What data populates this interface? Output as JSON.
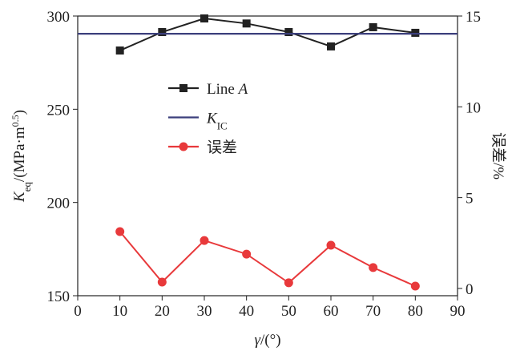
{
  "chart_data": {
    "type": "line",
    "xlabel": [
      {
        "text": "γ",
        "style": "italic"
      },
      {
        "text": "/(°)",
        "style": "normal"
      }
    ],
    "ylabel": [
      {
        "text": "K",
        "style": "italic"
      },
      {
        "text": "eq",
        "style": "sub"
      },
      {
        "text": "/(MPa·m",
        "style": "normal"
      },
      {
        "text": "0.5",
        "style": "sup"
      },
      {
        "text": ")",
        "style": "normal"
      }
    ],
    "y2label": [
      {
        "text": "误差/%",
        "style": "normal"
      }
    ],
    "x": [
      10,
      20,
      30,
      40,
      50,
      60,
      70,
      80
    ],
    "xlim": [
      0,
      90
    ],
    "xticks": [
      0,
      10,
      20,
      30,
      40,
      50,
      60,
      70,
      80,
      90
    ],
    "ylim": [
      150,
      300
    ],
    "yticks": [
      150,
      200,
      250,
      300
    ],
    "y2lim": [
      -0.4,
      15
    ],
    "y2ticks": [
      0,
      5,
      10,
      15
    ],
    "series": [
      {
        "name": [
          {
            "text": "Line ",
            "style": "normal"
          },
          {
            "text": "A",
            "style": "italic"
          }
        ],
        "color": "#222222",
        "marker": "square",
        "values": [
          281.5,
          291.4,
          298.7,
          296,
          291.4,
          283.7,
          294,
          291
        ]
      },
      {
        "name": [
          {
            "text": "K",
            "style": "italic"
          },
          {
            "text": "IC",
            "style": "sub"
          }
        ],
        "color": "#3b3f7c",
        "marker": "none",
        "hline": 290.5
      },
      {
        "name": [
          {
            "text": "误差",
            "style": "normal"
          }
        ],
        "color": "#e8393b",
        "marker": "circle",
        "axis": "y2",
        "values": [
          3.13,
          0.35,
          2.64,
          1.89,
          0.31,
          2.38,
          1.15,
          0.13
        ]
      }
    ]
  }
}
